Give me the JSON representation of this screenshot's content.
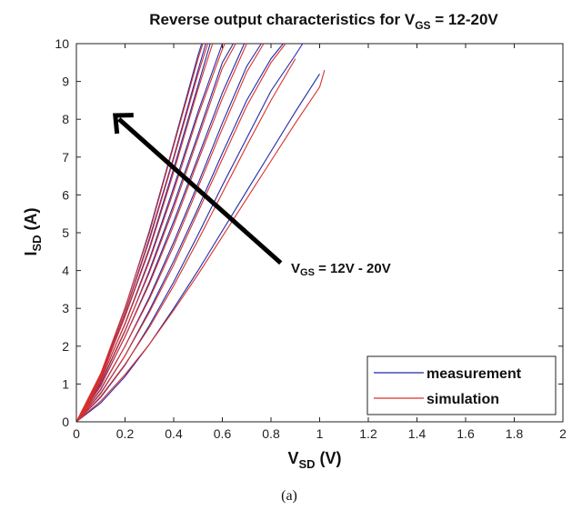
{
  "chart_data": {
    "type": "line",
    "title": {
      "text": "Reverse output characteristics for V",
      "sub": "GS",
      "tail": " = 12-20V"
    },
    "xlabel": {
      "text": "V",
      "sub": "SD",
      "tail": " (V)"
    },
    "ylabel": {
      "text": "I",
      "sub": "SD",
      "tail": " (A)"
    },
    "xlim": [
      0,
      2
    ],
    "ylim": [
      0,
      10
    ],
    "xticks": [
      "0",
      "0.2",
      "0.4",
      "0.6",
      "0.8",
      "1",
      "1.2",
      "1.4",
      "1.6",
      "1.8",
      "2"
    ],
    "yticks": [
      "0",
      "1",
      "2",
      "3",
      "4",
      "5",
      "6",
      "7",
      "8",
      "9",
      "10"
    ],
    "grid": false,
    "legend": {
      "placement": "bottom-right",
      "entries": [
        {
          "name": "measurement",
          "color": "#1f2aa8"
        },
        {
          "name": "simulation",
          "color": "#d9302b"
        }
      ]
    },
    "annotation": {
      "text_main": "V",
      "text_sub": "GS",
      "text_tail": " = 12V - 20V",
      "arrow_from": [
        0.84,
        4.2
      ],
      "arrow_to": [
        0.16,
        8.1
      ]
    },
    "series": [
      {
        "name": "measurement",
        "color": "#1f2aa8",
        "curves": [
          {
            "x": [
              0,
              0.1,
              0.2,
              0.3,
              0.4,
              0.5,
              0.515
            ],
            "y": [
              0,
              1.25,
              3.0,
              5.05,
              7.35,
              9.7,
              10.0
            ]
          },
          {
            "x": [
              0,
              0.1,
              0.2,
              0.3,
              0.4,
              0.5,
              0.532
            ],
            "y": [
              0,
              1.2,
              2.9,
              4.85,
              7.0,
              9.3,
              10.0
            ]
          },
          {
            "x": [
              0,
              0.1,
              0.2,
              0.3,
              0.4,
              0.5,
              0.55
            ],
            "y": [
              0,
              1.15,
              2.8,
              4.6,
              6.7,
              8.9,
              10.0
            ]
          },
          {
            "x": [
              0,
              0.1,
              0.2,
              0.3,
              0.4,
              0.5,
              0.6,
              0.6
            ],
            "y": [
              0,
              1.1,
              2.6,
              4.3,
              6.2,
              8.2,
              10.0,
              10.0
            ]
          },
          {
            "x": [
              0,
              0.1,
              0.2,
              0.3,
              0.4,
              0.5,
              0.6,
              0.645
            ],
            "y": [
              0,
              1.02,
              2.4,
              4.0,
              5.75,
              7.6,
              9.5,
              10.0
            ]
          },
          {
            "x": [
              0,
              0.1,
              0.2,
              0.3,
              0.4,
              0.5,
              0.6,
              0.69
            ],
            "y": [
              0,
              0.95,
              2.25,
              3.7,
              5.3,
              7.0,
              8.7,
              10.0
            ]
          },
          {
            "x": [
              0,
              0.1,
              0.2,
              0.3,
              0.4,
              0.5,
              0.6,
              0.7,
              0.76
            ],
            "y": [
              0,
              0.85,
              2.0,
              3.3,
              4.75,
              6.3,
              7.9,
              9.4,
              10.0
            ]
          },
          {
            "x": [
              0,
              0.1,
              0.2,
              0.3,
              0.4,
              0.5,
              0.6,
              0.7,
              0.8,
              0.85
            ],
            "y": [
              0,
              0.75,
              1.75,
              2.95,
              4.25,
              5.65,
              7.1,
              8.5,
              9.6,
              10.0
            ]
          },
          {
            "x": [
              0,
              0.1,
              0.2,
              0.3,
              0.4,
              0.5,
              0.6,
              0.7,
              0.8,
              0.9,
              0.93
            ],
            "y": [
              0,
              0.65,
              1.5,
              2.55,
              3.7,
              4.95,
              6.25,
              7.5,
              8.75,
              9.7,
              10.0
            ]
          },
          {
            "x": [
              0,
              0.1,
              0.2,
              0.3,
              0.4,
              0.5,
              0.6,
              0.7,
              0.8,
              0.9,
              1.0
            ],
            "y": [
              0,
              0.5,
              1.2,
              2.05,
              3.0,
              4.0,
              5.05,
              6.1,
              7.15,
              8.2,
              9.2
            ]
          }
        ]
      },
      {
        "name": "simulation",
        "color": "#d9302b",
        "curves": [
          {
            "x": [
              0,
              0.1,
              0.2,
              0.3,
              0.4,
              0.5,
              0.52
            ],
            "y": [
              0,
              1.28,
              3.02,
              5.0,
              7.3,
              9.6,
              10.0
            ]
          },
          {
            "x": [
              0,
              0.1,
              0.2,
              0.3,
              0.4,
              0.5,
              0.54
            ],
            "y": [
              0,
              1.22,
              2.88,
              4.8,
              6.95,
              9.2,
              10.0
            ]
          },
          {
            "x": [
              0,
              0.1,
              0.2,
              0.3,
              0.4,
              0.5,
              0.56
            ],
            "y": [
              0,
              1.17,
              2.78,
              4.55,
              6.6,
              8.8,
              10.0
            ]
          },
          {
            "x": [
              0,
              0.1,
              0.2,
              0.3,
              0.4,
              0.5,
              0.6,
              0.61
            ],
            "y": [
              0,
              1.12,
              2.58,
              4.25,
              6.1,
              8.1,
              9.85,
              10.0
            ]
          },
          {
            "x": [
              0,
              0.1,
              0.2,
              0.3,
              0.4,
              0.5,
              0.6,
              0.655
            ],
            "y": [
              0,
              1.05,
              2.42,
              3.95,
              5.65,
              7.5,
              9.35,
              10.0
            ]
          },
          {
            "x": [
              0,
              0.1,
              0.2,
              0.3,
              0.4,
              0.5,
              0.6,
              0.7
            ],
            "y": [
              0,
              0.97,
              2.25,
              3.65,
              5.2,
              6.9,
              8.55,
              10.0
            ]
          },
          {
            "x": [
              0,
              0.1,
              0.2,
              0.3,
              0.4,
              0.5,
              0.6,
              0.7,
              0.77
            ],
            "y": [
              0,
              0.87,
              2.0,
              3.25,
              4.65,
              6.2,
              7.75,
              9.25,
              10.0
            ]
          },
          {
            "x": [
              0,
              0.1,
              0.2,
              0.3,
              0.4,
              0.5,
              0.6,
              0.7,
              0.8,
              0.86
            ],
            "y": [
              0,
              0.77,
              1.75,
              2.9,
              4.15,
              5.55,
              6.95,
              8.35,
              9.5,
              10.0
            ]
          },
          {
            "x": [
              0,
              0.1,
              0.2,
              0.3,
              0.4,
              0.5,
              0.6,
              0.7,
              0.8,
              0.9
            ],
            "y": [
              0,
              0.67,
              1.52,
              2.5,
              3.6,
              4.8,
              6.05,
              7.3,
              8.5,
              9.6
            ]
          },
          {
            "x": [
              0,
              0.1,
              0.2,
              0.3,
              0.4,
              0.5,
              0.6,
              0.7,
              0.8,
              0.9,
              1.0,
              1.02
            ],
            "y": [
              0,
              0.55,
              1.25,
              2.05,
              2.95,
              3.9,
              4.9,
              5.9,
              6.9,
              7.9,
              8.85,
              9.3
            ]
          }
        ]
      }
    ]
  },
  "caption": "(a)"
}
